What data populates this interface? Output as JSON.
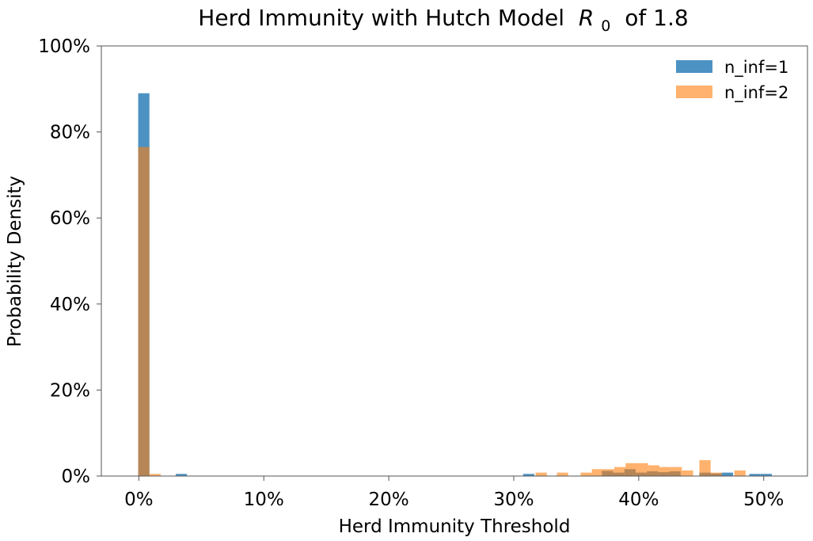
{
  "chart_data": {
    "type": "bar",
    "title": "Herd Immunity with Hutch Model",
    "title_symbol": "R",
    "title_subscript": "0",
    "title_suffix": "of 1.8",
    "xlabel": "Herd Immunity Threshold",
    "ylabel": "Probability Density",
    "xlim": [
      -3,
      53.5
    ],
    "ylim": [
      0,
      100
    ],
    "x_ticks": [
      0,
      10,
      20,
      30,
      40,
      50
    ],
    "x_tick_labels": [
      "0%",
      "10%",
      "20%",
      "30%",
      "40%",
      "50%"
    ],
    "y_ticks": [
      0,
      20,
      40,
      60,
      80,
      100
    ],
    "y_tick_labels": [
      "0%",
      "20%",
      "40%",
      "60%",
      "80%",
      "100%"
    ],
    "grid": false,
    "legend_position": "top-right",
    "bin_width": 0.9,
    "series": [
      {
        "name": "n_inf=1",
        "color": "#1f77b4",
        "opacity": 0.8,
        "bins": [
          {
            "x": 0.4,
            "y": 89.0
          },
          {
            "x": 3.4,
            "y": 0.5
          },
          {
            "x": 31.2,
            "y": 0.5
          },
          {
            "x": 37.5,
            "y": 1.2
          },
          {
            "x": 38.4,
            "y": 0.8
          },
          {
            "x": 39.3,
            "y": 1.6
          },
          {
            "x": 40.2,
            "y": 0.8
          },
          {
            "x": 41.1,
            "y": 1.1
          },
          {
            "x": 42.0,
            "y": 0.9
          },
          {
            "x": 42.9,
            "y": 1.1
          },
          {
            "x": 45.3,
            "y": 0.8
          },
          {
            "x": 46.2,
            "y": 0.6
          },
          {
            "x": 47.1,
            "y": 0.8
          },
          {
            "x": 49.3,
            "y": 0.5
          },
          {
            "x": 50.2,
            "y": 0.5
          }
        ]
      },
      {
        "name": "n_inf=2",
        "color": "#ff7f0e",
        "opacity": 0.6,
        "bins": [
          {
            "x": 0.4,
            "y": 76.5
          },
          {
            "x": 1.3,
            "y": 0.5
          },
          {
            "x": 32.2,
            "y": 0.8
          },
          {
            "x": 33.9,
            "y": 0.8
          },
          {
            "x": 35.8,
            "y": 0.8
          },
          {
            "x": 36.7,
            "y": 1.6
          },
          {
            "x": 37.6,
            "y": 1.6
          },
          {
            "x": 38.5,
            "y": 2.1
          },
          {
            "x": 39.4,
            "y": 3.0
          },
          {
            "x": 40.3,
            "y": 3.0
          },
          {
            "x": 41.2,
            "y": 2.5
          },
          {
            "x": 42.1,
            "y": 2.1
          },
          {
            "x": 43.0,
            "y": 2.1
          },
          {
            "x": 43.9,
            "y": 1.3
          },
          {
            "x": 45.3,
            "y": 3.7
          },
          {
            "x": 46.2,
            "y": 0.8
          },
          {
            "x": 48.1,
            "y": 1.3
          }
        ]
      }
    ]
  }
}
